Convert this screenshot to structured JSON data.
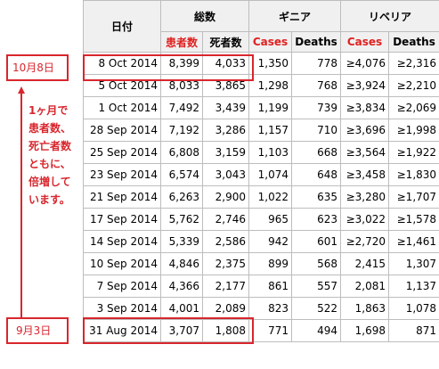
{
  "header": {
    "date_label": "日付",
    "total_label": "総数",
    "guinea_label": "ギニア",
    "liberia_label": "リベリア",
    "total_cases": "患者数",
    "total_deaths": "死者数",
    "guinea_cases": "Cases",
    "guinea_deaths": "Deaths",
    "liberia_cases": "Cases",
    "liberia_deaths": "Deaths"
  },
  "rows": [
    {
      "date": "8 Oct 2014",
      "total_cases": "8,399",
      "total_deaths": "4,033",
      "g_cases": "1,350",
      "g_deaths": "778",
      "l_cases": "≥4,076",
      "l_deaths": "≥2,316"
    },
    {
      "date": "5 Oct 2014",
      "total_cases": "8,033",
      "total_deaths": "3,865",
      "g_cases": "1,298",
      "g_deaths": "768",
      "l_cases": "≥3,924",
      "l_deaths": "≥2,210"
    },
    {
      "date": "1 Oct 2014",
      "total_cases": "7,492",
      "total_deaths": "3,439",
      "g_cases": "1,199",
      "g_deaths": "739",
      "l_cases": "≥3,834",
      "l_deaths": "≥2,069"
    },
    {
      "date": "28 Sep 2014",
      "total_cases": "7,192",
      "total_deaths": "3,286",
      "g_cases": "1,157",
      "g_deaths": "710",
      "l_cases": "≥3,696",
      "l_deaths": "≥1,998"
    },
    {
      "date": "25 Sep 2014",
      "total_cases": "6,808",
      "total_deaths": "3,159",
      "g_cases": "1,103",
      "g_deaths": "668",
      "l_cases": "≥3,564",
      "l_deaths": "≥1,922"
    },
    {
      "date": "23 Sep 2014",
      "total_cases": "6,574",
      "total_deaths": "3,043",
      "g_cases": "1,074",
      "g_deaths": "648",
      "l_cases": "≥3,458",
      "l_deaths": "≥1,830"
    },
    {
      "date": "21 Sep 2014",
      "total_cases": "6,263",
      "total_deaths": "2,900",
      "g_cases": "1,022",
      "g_deaths": "635",
      "l_cases": "≥3,280",
      "l_deaths": "≥1,707"
    },
    {
      "date": "17 Sep 2014",
      "total_cases": "5,762",
      "total_deaths": "2,746",
      "g_cases": "965",
      "g_deaths": "623",
      "l_cases": "≥3,022",
      "l_deaths": "≥1,578"
    },
    {
      "date": "14 Sep 2014",
      "total_cases": "5,339",
      "total_deaths": "2,586",
      "g_cases": "942",
      "g_deaths": "601",
      "l_cases": "≥2,720",
      "l_deaths": "≥1,461"
    },
    {
      "date": "10 Sep 2014",
      "total_cases": "4,846",
      "total_deaths": "2,375",
      "g_cases": "899",
      "g_deaths": "568",
      "l_cases": "2,415",
      "l_deaths": "1,307"
    },
    {
      "date": "7 Sep 2014",
      "total_cases": "4,366",
      "total_deaths": "2,177",
      "g_cases": "861",
      "g_deaths": "557",
      "l_cases": "2,081",
      "l_deaths": "1,137"
    },
    {
      "date": "3 Sep 2014",
      "total_cases": "4,001",
      "total_deaths": "2,089",
      "g_cases": "823",
      "g_deaths": "522",
      "l_cases": "1,863",
      "l_deaths": "1,078"
    },
    {
      "date": "31 Aug 2014",
      "total_cases": "3,707",
      "total_deaths": "1,808",
      "g_cases": "771",
      "g_deaths": "494",
      "l_cases": "1,698",
      "l_deaths": "871"
    }
  ],
  "annotations": {
    "top_label": "10月8日",
    "bottom_label": "9月3日",
    "note_lines": [
      "1ヶ月で",
      "患者数、",
      "死亡者数",
      "ともに、",
      "倍増して",
      "います。"
    ],
    "accent_color": "#d8262d"
  }
}
